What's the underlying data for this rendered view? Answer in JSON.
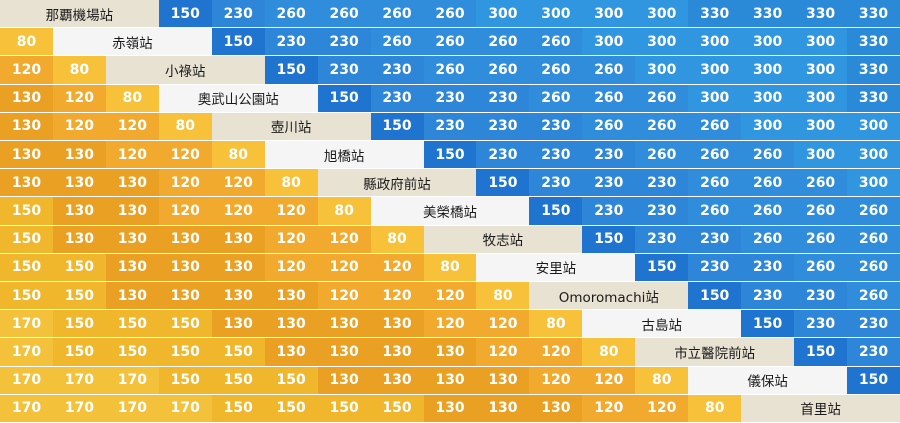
{
  "stations": [
    "那覇機場站",
    "赤嶺站",
    "小祿站",
    "奧武山公園站",
    "壺川站",
    "旭橋站",
    "縣政府前站",
    "美榮橋站",
    "牧志站",
    "安里站",
    "Omoromachi站",
    "古島站",
    "市立醫院前站",
    "儀保站",
    "首里站"
  ],
  "upper": [
    [
      150,
      230,
      260,
      260,
      260,
      260,
      300,
      300,
      300,
      300,
      330,
      330,
      330,
      330
    ],
    [
      150,
      230,
      230,
      260,
      260,
      260,
      260,
      300,
      300,
      300,
      300,
      300,
      330
    ],
    [
      150,
      230,
      230,
      260,
      260,
      260,
      260,
      300,
      300,
      300,
      300,
      330
    ],
    [
      150,
      230,
      230,
      230,
      260,
      260,
      260,
      300,
      300,
      300,
      330
    ],
    [
      150,
      230,
      230,
      230,
      260,
      260,
      260,
      300,
      300,
      300
    ],
    [
      150,
      230,
      230,
      230,
      260,
      260,
      260,
      300,
      300
    ],
    [
      150,
      230,
      230,
      230,
      260,
      260,
      260,
      300
    ],
    [
      150,
      230,
      230,
      260,
      260,
      260,
      260
    ],
    [
      150,
      230,
      230,
      260,
      260,
      260
    ],
    [
      150,
      230,
      230,
      260,
      260
    ],
    [
      150,
      230,
      230,
      260
    ],
    [
      150,
      230,
      230
    ],
    [
      150,
      230
    ],
    [
      150
    ]
  ],
  "lower": [
    [],
    [
      80
    ],
    [
      120,
      80
    ],
    [
      130,
      120,
      80
    ],
    [
      130,
      120,
      120,
      80
    ],
    [
      130,
      130,
      120,
      120,
      80
    ],
    [
      130,
      130,
      130,
      120,
      120,
      80
    ],
    [
      150,
      130,
      130,
      120,
      120,
      120,
      80
    ],
    [
      150,
      130,
      130,
      130,
      130,
      120,
      120,
      80
    ],
    [
      150,
      150,
      130,
      130,
      130,
      120,
      120,
      120,
      80
    ],
    [
      150,
      150,
      130,
      130,
      130,
      130,
      120,
      120,
      120,
      80
    ],
    [
      170,
      150,
      150,
      150,
      130,
      130,
      130,
      130,
      120,
      120,
      80
    ],
    [
      170,
      150,
      150,
      150,
      150,
      130,
      130,
      130,
      130,
      120,
      120,
      80
    ],
    [
      170,
      170,
      170,
      150,
      150,
      150,
      130,
      130,
      130,
      130,
      120,
      120,
      80
    ],
    [
      170,
      170,
      170,
      170,
      150,
      150,
      150,
      150,
      130,
      130,
      130,
      120,
      120,
      80
    ]
  ],
  "colors": {
    "80": "#f8c13a",
    "120": "#f2aa2e",
    "130": "#eaa023",
    "150_low": "#f0b72c",
    "170": "#f3c13a",
    "150_up": "#1f74cf",
    "230": "#2d86d7",
    "260": "#2f8ddc",
    "300": "#3096df",
    "330": "#2a8ad8",
    "station_a": "#e8e2d3",
    "station_b": "#f5f5f5"
  }
}
